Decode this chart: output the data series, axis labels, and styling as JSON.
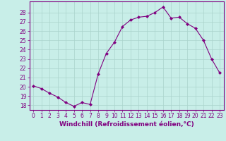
{
  "x": [
    0,
    1,
    2,
    3,
    4,
    5,
    6,
    7,
    8,
    9,
    10,
    11,
    12,
    13,
    14,
    15,
    16,
    17,
    18,
    19,
    20,
    21,
    22,
    23
  ],
  "y": [
    20.1,
    19.8,
    19.3,
    18.9,
    18.3,
    17.9,
    18.3,
    18.1,
    21.4,
    23.6,
    24.8,
    26.5,
    27.2,
    27.5,
    27.6,
    28.0,
    28.6,
    27.4,
    27.5,
    26.8,
    26.3,
    25.0,
    23.0,
    21.5
  ],
  "line_color": "#800080",
  "marker": "D",
  "marker_size": 2.0,
  "bg_color": "#c8eee8",
  "grid_color": "#aad4cc",
  "spine_color": "#800080",
  "xlabel": "Windchill (Refroidissement éolien,°C)",
  "xlabel_color": "#800080",
  "tick_color": "#800080",
  "ylim": [
    17.5,
    29.2
  ],
  "xlim": [
    -0.5,
    23.5
  ],
  "yticks": [
    18,
    19,
    20,
    21,
    22,
    23,
    24,
    25,
    26,
    27,
    28
  ],
  "xticks": [
    0,
    1,
    2,
    3,
    4,
    5,
    6,
    7,
    8,
    9,
    10,
    11,
    12,
    13,
    14,
    15,
    16,
    17,
    18,
    19,
    20,
    21,
    22,
    23
  ],
  "xlabel_fontsize": 6.5,
  "tick_fontsize": 5.5
}
